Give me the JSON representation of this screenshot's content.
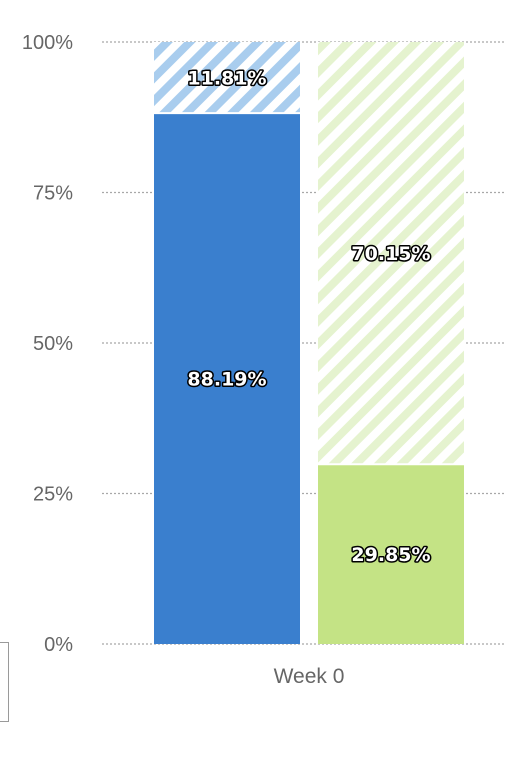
{
  "chart_data": {
    "type": "bar",
    "stacked": true,
    "categories": [
      "Week 0"
    ],
    "ylim": [
      0,
      100
    ],
    "yticks": [
      "0%",
      "25%",
      "50%",
      "75%",
      "100%"
    ],
    "grid": true,
    "bars": [
      {
        "segments": [
          {
            "value": 88.19,
            "label": "88.19%",
            "color": "#3a7fce",
            "hatched": false
          },
          {
            "value": 11.81,
            "label": "11.81%",
            "color": "#a9cdee",
            "hatched": true
          }
        ]
      },
      {
        "segments": [
          {
            "value": 29.85,
            "label": "29.85%",
            "color": "#c4e385",
            "hatched": false
          },
          {
            "value": 70.15,
            "label": "70.15%",
            "color": "#e5f3cf",
            "hatched": true
          }
        ]
      }
    ]
  }
}
